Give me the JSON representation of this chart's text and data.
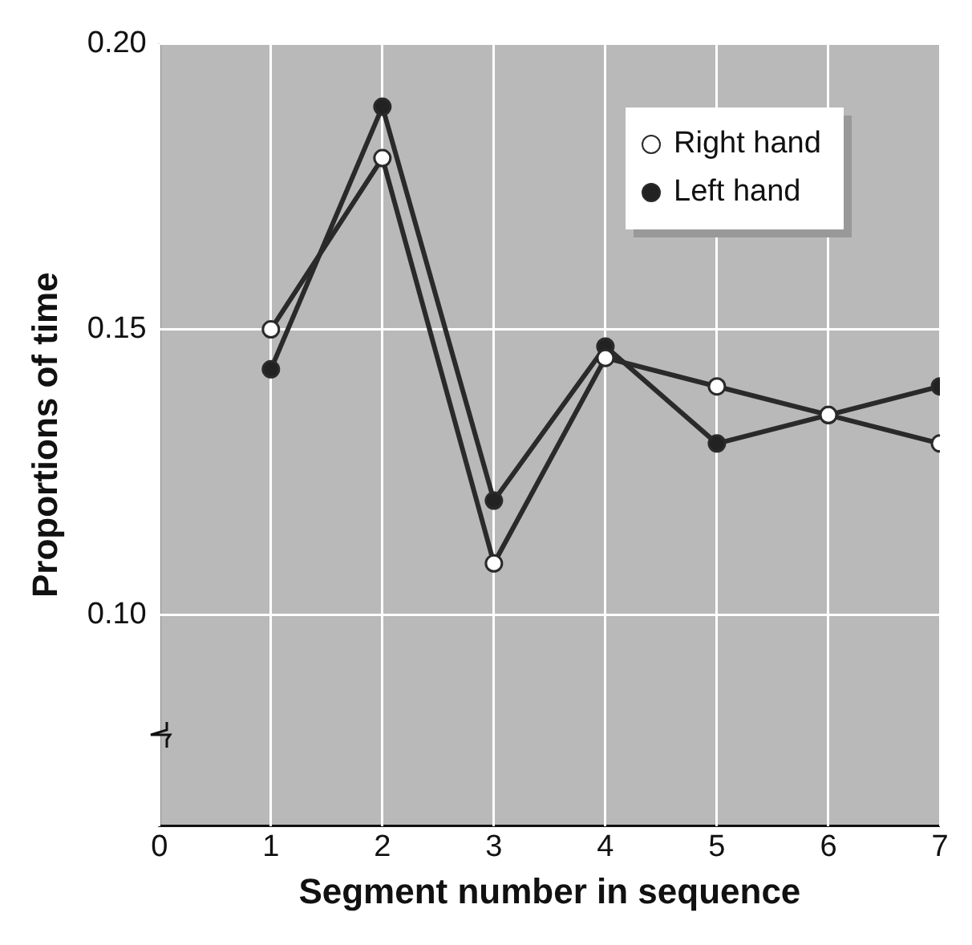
{
  "chart_data": {
    "type": "line",
    "xlabel": "Segment number in sequence",
    "ylabel": "Proportions of time",
    "x": [
      1,
      2,
      3,
      4,
      5,
      6,
      7
    ],
    "series": [
      {
        "name": "Right hand",
        "color": "#ffffff",
        "values": [
          0.15,
          0.18,
          0.109,
          0.145,
          0.14,
          0.135,
          0.13
        ]
      },
      {
        "name": "Left hand",
        "color": "#222222",
        "values": [
          0.143,
          0.189,
          0.12,
          0.147,
          0.13,
          0.135,
          0.14
        ]
      }
    ],
    "xlim": [
      0,
      7
    ],
    "xticks": [
      0,
      1,
      2,
      3,
      4,
      5,
      6,
      7
    ],
    "ylim": [
      0.063,
      0.2
    ],
    "yticks": [
      {
        "value": 0.1,
        "label": "0.10"
      },
      {
        "value": 0.15,
        "label": "0.15"
      },
      {
        "value": 0.2,
        "label": "0.20"
      }
    ],
    "grid": true,
    "legend": "top right",
    "marker": "circle",
    "line_style": "solid"
  }
}
